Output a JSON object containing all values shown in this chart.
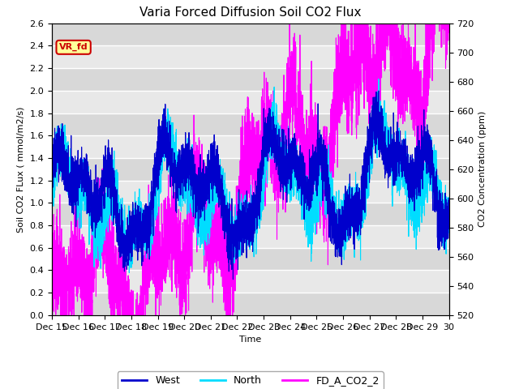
{
  "title": "Varia Forced Diffusion Soil CO2 Flux",
  "xlabel": "Time",
  "ylabel_left": "Soil CO2 Flux (mmol/m2/s)",
  "ylabel_right": "CO2 Concentration (ppm)",
  "ylim_left": [
    0.0,
    2.6
  ],
  "ylim_right": [
    520,
    720
  ],
  "background_color": "#ffffff",
  "plot_bg_color": "#e0e0e0",
  "grid_color": "#ffffff",
  "title_fontsize": 11,
  "axis_fontsize": 8,
  "tick_fontsize": 8,
  "seed": 42,
  "n_points": 4320,
  "west_color": "#0000cc",
  "north_color": "#00ddff",
  "co2_color": "#ff00ff",
  "legend_labels": [
    "West",
    "North",
    "FD_A_CO2_2"
  ],
  "annotation_text": "VR_fd",
  "annotation_color": "#cc0000",
  "annotation_bg": "#ffff99",
  "lw": 0.8
}
